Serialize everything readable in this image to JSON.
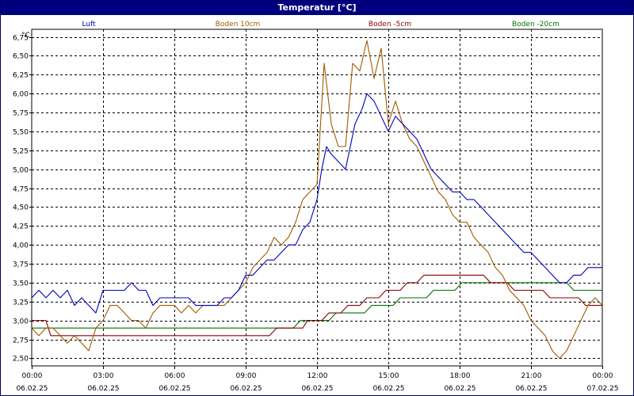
{
  "window": {
    "title": "Temperatur [°C]"
  },
  "chart_data": {
    "type": "line",
    "title": "Temperatur [°C]",
    "ylabel": "°C",
    "xlabel": "",
    "ylim": [
      2.4,
      6.85
    ],
    "xlim": [
      0,
      24
    ],
    "grid": true,
    "legend_position": "top",
    "y_ticks": [
      2.5,
      2.75,
      3.0,
      3.25,
      3.5,
      3.75,
      4.0,
      4.25,
      4.5,
      4.75,
      5.0,
      5.25,
      5.5,
      5.75,
      6.0,
      6.25,
      6.5,
      6.75
    ],
    "y_tick_labels": [
      "2,50",
      "2,75",
      "3,00",
      "3,25",
      "3,50",
      "3,75",
      "4,00",
      "4,25",
      "4,50",
      "4,75",
      "5,00",
      "5,25",
      "5,50",
      "5,75",
      "6,00",
      "6,25",
      "6,50",
      "6,75"
    ],
    "x_ticks": [
      0,
      3,
      6,
      9,
      12,
      15,
      18,
      21,
      24
    ],
    "x_tick_times": [
      "00:00",
      "03:00",
      "06:00",
      "09:00",
      "12:00",
      "15:00",
      "18:00",
      "21:00",
      "00:00"
    ],
    "x_tick_dates": [
      "06.02.25",
      "06.02.25",
      "06.02.25",
      "06.02.25",
      "06.02.25",
      "06.02.25",
      "06.02.25",
      "06.02.25",
      "07.02.25"
    ],
    "series": [
      {
        "name": "Luft",
        "color": "#0000c0",
        "points": [
          [
            0,
            3.3
          ],
          [
            0.3,
            3.4
          ],
          [
            0.6,
            3.3
          ],
          [
            0.9,
            3.4
          ],
          [
            1.2,
            3.3
          ],
          [
            1.5,
            3.4
          ],
          [
            1.8,
            3.2
          ],
          [
            2.1,
            3.3
          ],
          [
            2.4,
            3.2
          ],
          [
            2.7,
            3.1
          ],
          [
            3.0,
            3.4
          ],
          [
            3.3,
            3.4
          ],
          [
            3.6,
            3.4
          ],
          [
            3.9,
            3.4
          ],
          [
            4.2,
            3.5
          ],
          [
            4.5,
            3.4
          ],
          [
            4.8,
            3.4
          ],
          [
            5.1,
            3.2
          ],
          [
            5.4,
            3.3
          ],
          [
            5.7,
            3.3
          ],
          [
            6.0,
            3.3
          ],
          [
            6.3,
            3.3
          ],
          [
            6.6,
            3.3
          ],
          [
            6.9,
            3.2
          ],
          [
            7.2,
            3.2
          ],
          [
            7.5,
            3.2
          ],
          [
            7.8,
            3.2
          ],
          [
            8.1,
            3.3
          ],
          [
            8.4,
            3.3
          ],
          [
            8.7,
            3.4
          ],
          [
            9.0,
            3.6
          ],
          [
            9.3,
            3.6
          ],
          [
            9.6,
            3.7
          ],
          [
            9.9,
            3.8
          ],
          [
            10.2,
            3.8
          ],
          [
            10.5,
            3.9
          ],
          [
            10.8,
            4.0
          ],
          [
            11.1,
            4.0
          ],
          [
            11.4,
            4.2
          ],
          [
            11.7,
            4.3
          ],
          [
            12.0,
            4.6
          ],
          [
            12.2,
            5.0
          ],
          [
            12.4,
            5.3
          ],
          [
            12.6,
            5.2
          ],
          [
            12.9,
            5.1
          ],
          [
            13.2,
            5.0
          ],
          [
            13.4,
            5.3
          ],
          [
            13.6,
            5.6
          ],
          [
            13.9,
            5.8
          ],
          [
            14.1,
            6.0
          ],
          [
            14.4,
            5.9
          ],
          [
            14.7,
            5.7
          ],
          [
            15.0,
            5.5
          ],
          [
            15.3,
            5.7
          ],
          [
            15.6,
            5.6
          ],
          [
            15.9,
            5.5
          ],
          [
            16.2,
            5.4
          ],
          [
            16.5,
            5.2
          ],
          [
            16.8,
            5.0
          ],
          [
            17.1,
            4.9
          ],
          [
            17.4,
            4.8
          ],
          [
            17.7,
            4.7
          ],
          [
            18.0,
            4.7
          ],
          [
            18.3,
            4.6
          ],
          [
            18.6,
            4.6
          ],
          [
            18.9,
            4.5
          ],
          [
            19.2,
            4.4
          ],
          [
            19.5,
            4.3
          ],
          [
            19.8,
            4.2
          ],
          [
            20.1,
            4.1
          ],
          [
            20.4,
            4.0
          ],
          [
            20.7,
            3.9
          ],
          [
            21.0,
            3.9
          ],
          [
            21.3,
            3.8
          ],
          [
            21.6,
            3.7
          ],
          [
            21.9,
            3.6
          ],
          [
            22.2,
            3.5
          ],
          [
            22.5,
            3.5
          ],
          [
            22.8,
            3.6
          ],
          [
            23.1,
            3.6
          ],
          [
            23.4,
            3.7
          ],
          [
            23.7,
            3.7
          ],
          [
            24.0,
            3.7
          ]
        ]
      },
      {
        "name": "Boden 10cm",
        "color": "#a05a00",
        "points": [
          [
            0,
            2.9
          ],
          [
            0.3,
            2.8
          ],
          [
            0.6,
            2.9
          ],
          [
            0.9,
            2.9
          ],
          [
            1.2,
            2.8
          ],
          [
            1.5,
            2.7
          ],
          [
            1.8,
            2.8
          ],
          [
            2.1,
            2.7
          ],
          [
            2.4,
            2.6
          ],
          [
            2.7,
            2.9
          ],
          [
            3.0,
            3.0
          ],
          [
            3.3,
            3.2
          ],
          [
            3.6,
            3.2
          ],
          [
            3.9,
            3.1
          ],
          [
            4.2,
            3.0
          ],
          [
            4.5,
            3.0
          ],
          [
            4.8,
            2.9
          ],
          [
            5.1,
            3.1
          ],
          [
            5.4,
            3.2
          ],
          [
            5.7,
            3.2
          ],
          [
            6.0,
            3.2
          ],
          [
            6.3,
            3.1
          ],
          [
            6.6,
            3.2
          ],
          [
            6.9,
            3.1
          ],
          [
            7.2,
            3.2
          ],
          [
            7.5,
            3.2
          ],
          [
            7.8,
            3.2
          ],
          [
            8.1,
            3.2
          ],
          [
            8.4,
            3.3
          ],
          [
            8.7,
            3.4
          ],
          [
            9.0,
            3.5
          ],
          [
            9.3,
            3.7
          ],
          [
            9.6,
            3.8
          ],
          [
            9.9,
            3.9
          ],
          [
            10.2,
            4.1
          ],
          [
            10.5,
            4.0
          ],
          [
            10.8,
            4.1
          ],
          [
            11.1,
            4.3
          ],
          [
            11.4,
            4.6
          ],
          [
            11.7,
            4.7
          ],
          [
            12.0,
            4.8
          ],
          [
            12.3,
            6.4
          ],
          [
            12.6,
            5.6
          ],
          [
            12.9,
            5.3
          ],
          [
            13.2,
            5.3
          ],
          [
            13.5,
            6.4
          ],
          [
            13.8,
            6.3
          ],
          [
            14.1,
            6.7
          ],
          [
            14.4,
            6.2
          ],
          [
            14.7,
            6.6
          ],
          [
            15.0,
            5.6
          ],
          [
            15.3,
            5.9
          ],
          [
            15.6,
            5.6
          ],
          [
            15.9,
            5.4
          ],
          [
            16.2,
            5.3
          ],
          [
            16.5,
            5.1
          ],
          [
            16.8,
            4.9
          ],
          [
            17.1,
            4.7
          ],
          [
            17.4,
            4.6
          ],
          [
            17.7,
            4.4
          ],
          [
            18.0,
            4.3
          ],
          [
            18.3,
            4.3
          ],
          [
            18.6,
            4.1
          ],
          [
            18.9,
            4.0
          ],
          [
            19.2,
            3.9
          ],
          [
            19.5,
            3.7
          ],
          [
            19.8,
            3.6
          ],
          [
            20.1,
            3.4
          ],
          [
            20.4,
            3.3
          ],
          [
            20.7,
            3.2
          ],
          [
            21.0,
            3.0
          ],
          [
            21.3,
            2.9
          ],
          [
            21.6,
            2.8
          ],
          [
            21.9,
            2.6
          ],
          [
            22.2,
            2.5
          ],
          [
            22.5,
            2.6
          ],
          [
            22.8,
            2.8
          ],
          [
            23.1,
            3.0
          ],
          [
            23.4,
            3.2
          ],
          [
            23.7,
            3.3
          ],
          [
            24.0,
            3.2
          ]
        ]
      },
      {
        "name": "Boden -5cm",
        "color": "#8b0000",
        "points": [
          [
            0,
            3.0
          ],
          [
            0.6,
            3.0
          ],
          [
            0.8,
            2.8
          ],
          [
            3.5,
            2.8
          ],
          [
            7.0,
            2.8
          ],
          [
            10.0,
            2.8
          ],
          [
            10.3,
            2.9
          ],
          [
            11.4,
            2.9
          ],
          [
            11.6,
            3.0
          ],
          [
            12.2,
            3.0
          ],
          [
            12.5,
            3.1
          ],
          [
            13.0,
            3.1
          ],
          [
            13.3,
            3.2
          ],
          [
            13.8,
            3.2
          ],
          [
            14.1,
            3.3
          ],
          [
            14.6,
            3.3
          ],
          [
            14.9,
            3.4
          ],
          [
            15.5,
            3.4
          ],
          [
            15.8,
            3.5
          ],
          [
            16.2,
            3.5
          ],
          [
            16.5,
            3.6
          ],
          [
            18.0,
            3.6
          ],
          [
            18.3,
            3.6
          ],
          [
            19.0,
            3.6
          ],
          [
            19.3,
            3.5
          ],
          [
            20.0,
            3.5
          ],
          [
            20.3,
            3.4
          ],
          [
            21.5,
            3.4
          ],
          [
            21.8,
            3.3
          ],
          [
            23.0,
            3.3
          ],
          [
            23.3,
            3.2
          ],
          [
            24.0,
            3.2
          ]
        ]
      },
      {
        "name": "Boden -20cm",
        "color": "#007000",
        "points": [
          [
            0,
            2.9
          ],
          [
            1.6,
            2.9
          ],
          [
            1.8,
            2.9
          ],
          [
            4.0,
            2.9
          ],
          [
            7.0,
            2.9
          ],
          [
            10.0,
            2.9
          ],
          [
            11.0,
            2.9
          ],
          [
            11.3,
            3.0
          ],
          [
            12.5,
            3.0
          ],
          [
            12.8,
            3.1
          ],
          [
            14.0,
            3.1
          ],
          [
            14.3,
            3.2
          ],
          [
            15.2,
            3.2
          ],
          [
            15.5,
            3.3
          ],
          [
            16.6,
            3.3
          ],
          [
            16.9,
            3.4
          ],
          [
            17.8,
            3.4
          ],
          [
            18.1,
            3.5
          ],
          [
            19.0,
            3.5
          ],
          [
            22.5,
            3.5
          ],
          [
            22.8,
            3.4
          ],
          [
            24.0,
            3.4
          ]
        ]
      }
    ]
  }
}
